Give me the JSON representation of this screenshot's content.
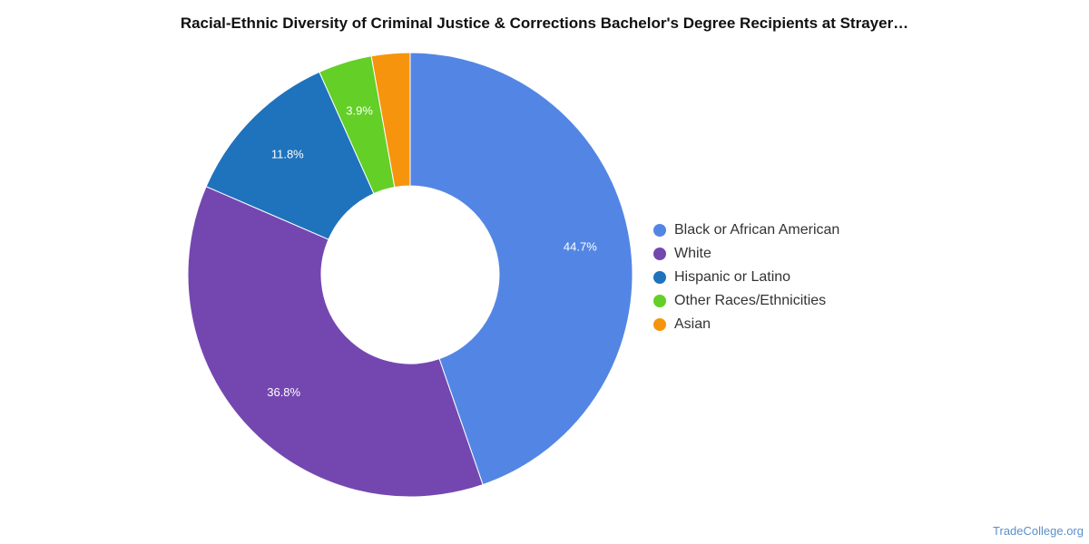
{
  "chart_data": {
    "type": "pie",
    "title": "Racial-Ethnic Diversity of Criminal Justice & Corrections Bachelor's Degree Recipients at Strayer…",
    "donut": true,
    "legend_position": "right",
    "slices": [
      {
        "label": "Black or African American",
        "value": 44.7,
        "value_label": "44.7%",
        "color": "#5386e4"
      },
      {
        "label": "White",
        "value": 36.8,
        "value_label": "36.8%",
        "color": "#7447b0"
      },
      {
        "label": "Hispanic or Latino",
        "value": 11.8,
        "value_label": "11.8%",
        "color": "#1f73bd"
      },
      {
        "label": "Other Races/Ethnicities",
        "value": 3.9,
        "value_label": "3.9%",
        "color": "#63cf27"
      },
      {
        "label": "Asian",
        "value": 2.8,
        "value_label": "",
        "color": "#f7940d"
      }
    ]
  },
  "footer": {
    "source": "TradeCollege.org"
  }
}
